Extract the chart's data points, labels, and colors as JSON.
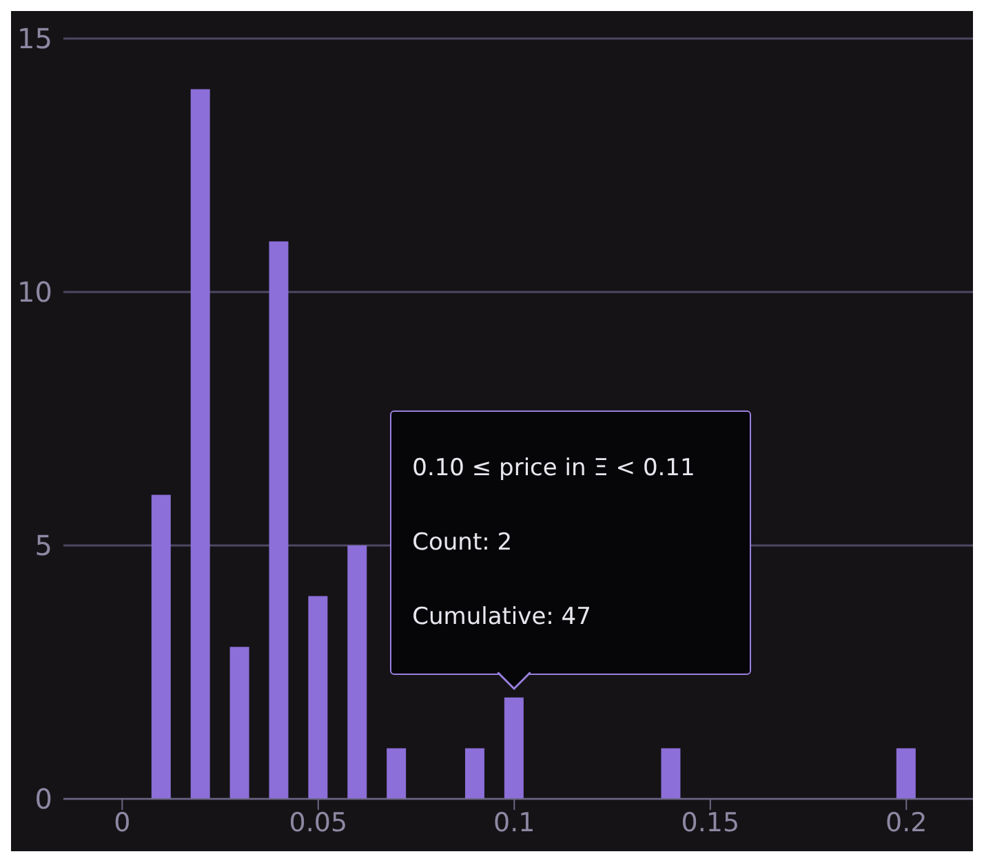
{
  "chart_data": {
    "type": "bar",
    "x": [
      0.01,
      0.02,
      0.03,
      0.04,
      0.05,
      0.06,
      0.07,
      0.08,
      0.09,
      0.1,
      0.11,
      0.12,
      0.13,
      0.14,
      0.15,
      0.16,
      0.17,
      0.18,
      0.19,
      0.2
    ],
    "values": [
      6,
      14,
      3,
      11,
      4,
      5,
      1,
      0,
      1,
      2,
      0,
      0,
      0,
      1,
      0,
      0,
      0,
      0,
      0,
      1
    ],
    "color": "#8c6fd8",
    "xlim": [
      -0.015,
      0.217
    ],
    "xticks": [
      0,
      0.05,
      0.1,
      0.15,
      0.2
    ],
    "ylim": [
      0,
      15
    ],
    "yticks": [
      0,
      5,
      10,
      15
    ],
    "grid": "y",
    "annotations": [
      "0.10 ≤ price in Ξ < 0.11",
      "Count: 2",
      "Cumulative: 47"
    ]
  }
}
